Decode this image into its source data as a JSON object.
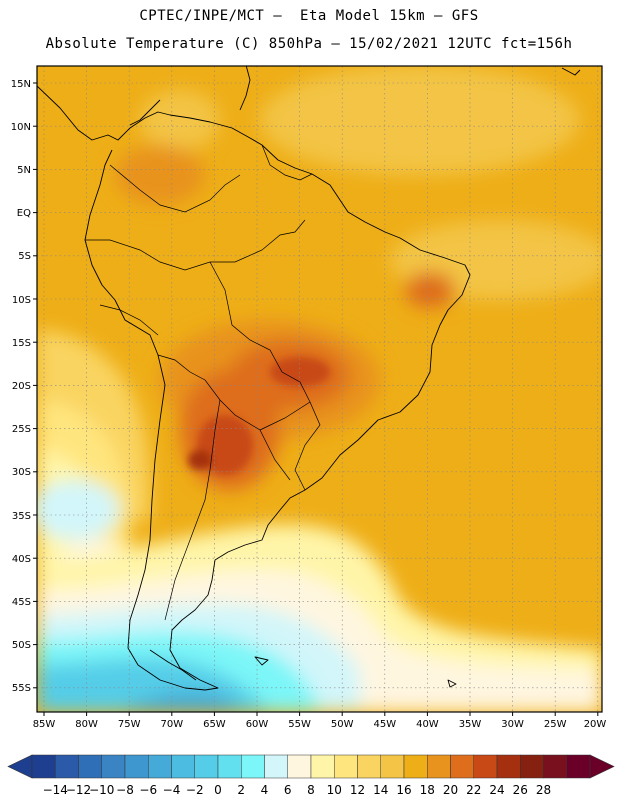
{
  "header": {
    "title_line1": "CPTEC/INPE/MCT –  Eta Model 15km – GFS",
    "title_line2": "Absolute Temperature (C) 850hPa – 15/02/2021 12UTC fct=156h"
  },
  "map": {
    "lat_labels": [
      "15N",
      "10N",
      "5N",
      "EQ",
      "5S",
      "10S",
      "15S",
      "20S",
      "25S",
      "30S",
      "35S",
      "40S",
      "45S",
      "50S",
      "55S"
    ],
    "lon_labels": [
      "85W",
      "80W",
      "75W",
      "70W",
      "65W",
      "60W",
      "55W",
      "50W",
      "45W",
      "40W",
      "35W",
      "30W",
      "25W",
      "20W"
    ],
    "gridlines": "dotted"
  },
  "colorbar": {
    "labels": [
      "-14",
      "-12",
      "-10",
      "-8",
      "-6",
      "-4",
      "-2",
      "0",
      "2",
      "4",
      "6",
      "8",
      "10",
      "12",
      "14",
      "16",
      "18",
      "20",
      "22",
      "24",
      "26",
      "28"
    ],
    "colors": [
      "#1e3f8f",
      "#2a5aa8",
      "#2f6fb7",
      "#3a84c4",
      "#3f97cf",
      "#45aad8",
      "#4cbce0",
      "#55cde8",
      "#63e0ef",
      "#7cf6f8",
      "#d2f6fa",
      "#fff6e0",
      "#fff5a8",
      "#ffe57e",
      "#f9d461",
      "#f3c445",
      "#eeae17",
      "#e8931e",
      "#de6d1c",
      "#c84816",
      "#a53010",
      "#862010",
      "#78101e",
      "#6a0028"
    ],
    "left_arrow_color": "#1e3f8f",
    "right_arrow_color": "#6a0028"
  }
}
